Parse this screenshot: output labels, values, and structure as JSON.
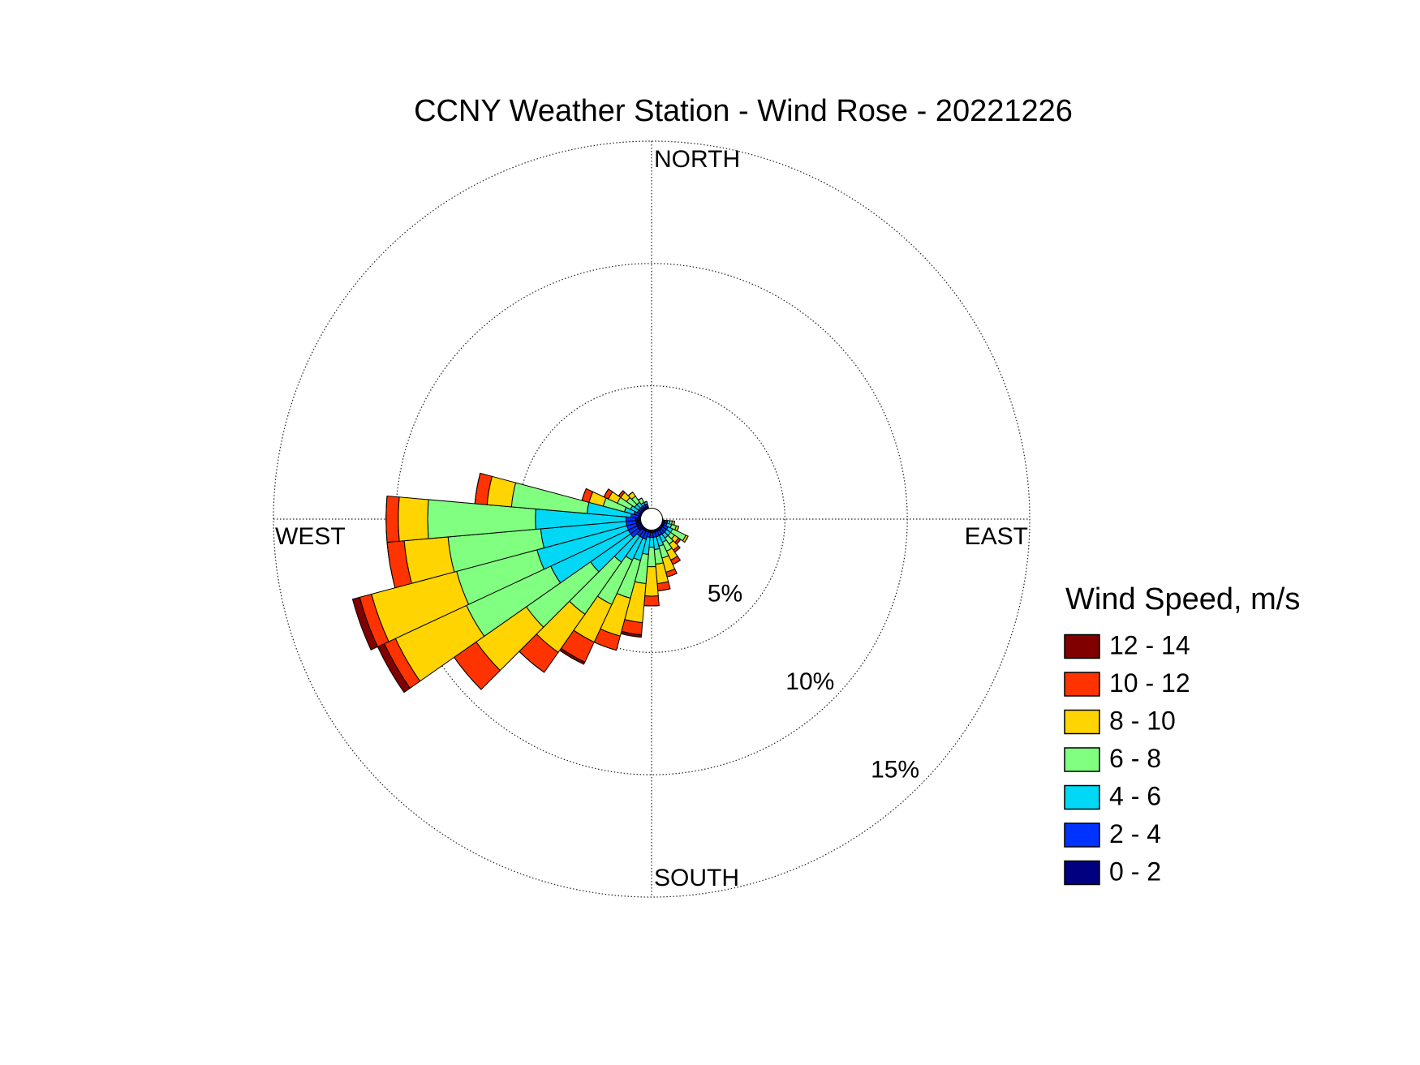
{
  "chart_data": {
    "type": "windrose",
    "title": "CCNY Weather Station - Wind Rose - 20221226",
    "direction_labels": [
      "NORTH",
      "EAST",
      "SOUTH",
      "WEST"
    ],
    "legend_title": "Wind Speed, m/s",
    "legend": "right",
    "x": [
      100,
      110,
      120,
      130,
      140,
      150,
      160,
      170,
      180,
      190,
      200,
      210,
      220,
      230,
      240,
      250,
      260,
      270,
      280,
      290,
      300,
      310,
      320,
      330,
      340
    ],
    "xlim": [
      0,
      360
    ],
    "rlim": [
      0,
      15
    ],
    "rticks": [
      {
        "value": 5,
        "label": "5%"
      },
      {
        "value": 10,
        "label": "10%"
      },
      {
        "value": 15,
        "label": "15%"
      }
    ],
    "grid": true,
    "series": [
      {
        "name": "0 - 2",
        "color": "#000080",
        "values": [
          0.1,
          0.1,
          0.1,
          0.1,
          0.1,
          0.1,
          0.1,
          0.1,
          0.1,
          0.1,
          0.1,
          0.1,
          0.1,
          0.2,
          0.2,
          0.2,
          0.2,
          0.2,
          0.1,
          0.1,
          0.1,
          0.1,
          0.1,
          0.1,
          0.1
        ]
      },
      {
        "name": "2 - 4",
        "color": "#0033ff",
        "values": [
          0.1,
          0.1,
          0.2,
          0.2,
          0.2,
          0.2,
          0.2,
          0.2,
          0.2,
          0.2,
          0.3,
          0.3,
          0.3,
          0.4,
          0.4,
          0.4,
          0.4,
          0.4,
          0.3,
          0.2,
          0.1,
          0.1,
          0.1,
          0.1,
          0.1
        ]
      },
      {
        "name": "4 - 6",
        "color": "#00d8f5",
        "values": [
          0.1,
          0.2,
          0.2,
          0.2,
          0.2,
          0.3,
          0.4,
          0.5,
          0.4,
          0.7,
          0.9,
          1.0,
          1.3,
          2.0,
          3.5,
          3.8,
          3.5,
          3.7,
          1.8,
          0.4,
          0.3,
          0.2,
          0.2,
          0.1,
          0.1
        ]
      },
      {
        "name": "6 - 8",
        "color": "#80ff80",
        "values": [
          0.1,
          0.2,
          0.6,
          0.2,
          0.3,
          0.4,
          0.5,
          0.6,
          0.8,
          1.2,
          1.6,
          2.0,
          2.6,
          3.2,
          3.8,
          3.4,
          3.8,
          4.4,
          3.1,
          0.9,
          0.6,
          0.4,
          0.3,
          0.2,
          0
        ]
      },
      {
        "name": "8 - 10",
        "color": "#ffd400",
        "values": [
          0.1,
          0.1,
          0.1,
          0.2,
          0.3,
          0.4,
          0.6,
          0.8,
          1.2,
          1.6,
          1.6,
          1.7,
          1.9,
          2.5,
          3.2,
          3.6,
          1.8,
          1.2,
          1.0,
          0.6,
          0.4,
          0.3,
          0.2,
          0,
          0
        ]
      },
      {
        "name": "10 - 12",
        "color": "#ff3300",
        "values": [
          0,
          0,
          0,
          0.1,
          0.1,
          0.2,
          0.2,
          0.3,
          0.4,
          0.5,
          0.6,
          0.9,
          1.0,
          1.1,
          0.5,
          0.5,
          0.7,
          0.5,
          0.5,
          0.3,
          0.2,
          0.1,
          0,
          0,
          0
        ]
      },
      {
        "name": "12 - 14",
        "color": "#800000",
        "values": [
          0,
          0,
          0,
          0,
          0,
          0,
          0,
          0,
          0,
          0.1,
          0,
          0.1,
          0,
          0,
          0.3,
          0.3,
          0,
          0,
          0,
          0,
          0,
          0,
          0,
          0,
          0
        ]
      }
    ]
  }
}
